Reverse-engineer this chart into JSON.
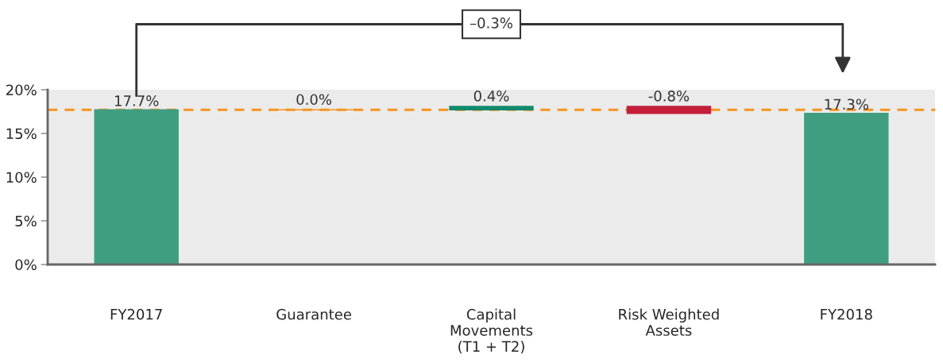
{
  "chart_data": {
    "type": "bar",
    "categories": [
      "FY2017",
      "Guarantee",
      "Capital\nMovements\n(T1 + T2)",
      "Risk Weighted\nAssets",
      "FY2018"
    ],
    "values": [
      17.7,
      0.0,
      0.4,
      -0.8,
      17.3
    ],
    "base": [
      0,
      17.7,
      17.7,
      18.1,
      0
    ],
    "colors": [
      "#3f9e82",
      "#f7941d",
      "#138a6c",
      "#c41e3a",
      "#3f9e82"
    ],
    "value_labels": [
      "17.7%",
      "0.0%",
      "0.4%",
      "-0.8%",
      "17.3%"
    ],
    "ylim": [
      0,
      20
    ],
    "yticks": [
      {
        "value": 0,
        "label": "0%"
      },
      {
        "value": 5,
        "label": "5%"
      },
      {
        "value": 10,
        "label": "10%"
      },
      {
        "value": 15,
        "label": "15%"
      },
      {
        "value": 20,
        "label": "20%"
      }
    ],
    "ref_lines": [
      {
        "axis": "y",
        "value": 17.7,
        "color": "#f7941d",
        "line_style": "dashed"
      }
    ],
    "annotations": [
      "–0.3%"
    ],
    "grid": false
  }
}
